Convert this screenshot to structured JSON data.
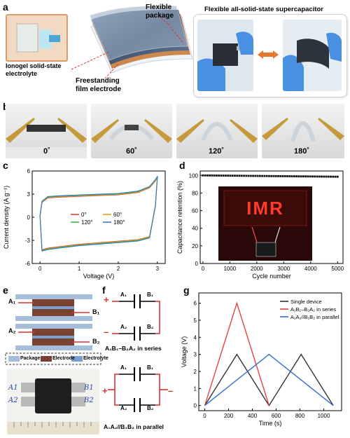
{
  "panel_a": {
    "label": "a",
    "ionogel_label": "Ionogel solid-state electrolyte",
    "ionogel_line1": "Ionogel solid-state",
    "ionogel_line2": "electrolyte",
    "flexible_package_line1": "Flexible",
    "flexible_package_line2": "package",
    "film_electrode_line1": "Freestanding",
    "film_electrode_line2": "film electrode",
    "supercap_title": "Flexible all-solid-state supercapacitor"
  },
  "panel_b": {
    "label": "b",
    "angles": [
      "0˚",
      "60˚",
      "120˚",
      "180˚"
    ]
  },
  "panel_c": {
    "label": "c",
    "chart_data": {
      "type": "line",
      "xlabel": "Voltage (V)",
      "ylabel": "Current density (A g⁻¹)",
      "xlim": [
        -0.2,
        3.2
      ],
      "ylim": [
        -6,
        6
      ],
      "xticks": [
        0,
        1,
        2,
        3
      ],
      "yticks": [
        -6,
        -3,
        0,
        3,
        6
      ],
      "legend": [
        "0°",
        "60°",
        "120°",
        "180°"
      ],
      "colors": [
        "#e8403a",
        "#d9a11c",
        "#3cb44b",
        "#3a78c9"
      ],
      "series_upper": {
        "x": [
          0,
          0.05,
          0.2,
          0.5,
          1.0,
          1.5,
          2.0,
          2.5,
          2.8,
          2.95,
          3.0
        ],
        "y": [
          0.2,
          2.0,
          2.6,
          2.7,
          2.8,
          2.9,
          3.0,
          3.3,
          3.9,
          4.8,
          5.2
        ]
      },
      "series_lower": {
        "x": [
          3.0,
          2.95,
          2.8,
          2.5,
          2.0,
          1.5,
          1.0,
          0.5,
          0.2,
          0.05,
          0.0
        ],
        "y": [
          5.2,
          1.5,
          -2.6,
          -3.0,
          -3.2,
          -3.4,
          -3.6,
          -3.9,
          -4.1,
          -4.3,
          0.2
        ]
      }
    }
  },
  "panel_d": {
    "label": "d",
    "sign_text": "IMR",
    "chart_data": {
      "type": "scatter",
      "xlabel": "Cycle number",
      "ylabel": "Capacitance retention (%)",
      "xlim": [
        -100,
        5200
      ],
      "ylim": [
        0,
        105
      ],
      "xticks": [
        0,
        1000,
        2000,
        3000,
        4000,
        5000
      ],
      "yticks": [
        0,
        20,
        40,
        60,
        80,
        100
      ],
      "series": [
        {
          "x_start": 0,
          "x_end": 5000,
          "y_start": 100,
          "y_end": 98.5,
          "points": 60
        }
      ]
    }
  },
  "panel_e": {
    "label": "e",
    "a1": "A₁",
    "b1": "B₁",
    "a2": "A₂",
    "b2": "B₂",
    "legend": [
      "Package",
      "Electrode",
      "Electrolyte"
    ],
    "photo_a1": "A1",
    "photo_a2": "A2",
    "photo_b1": "B1",
    "photo_b2": "B2"
  },
  "panel_f": {
    "label": "f",
    "a1": "A₁",
    "b1": "B₁",
    "a2": "A₂",
    "b2": "B₂",
    "plus": "+",
    "minus": "–",
    "series_caption": "A₁B₁–B₂A₂ in series",
    "parallel_caption": "A₁A₂//B₁B₂ in parallel"
  },
  "panel_g": {
    "label": "g",
    "chart_data": {
      "type": "line",
      "xlabel": "Time (s)",
      "ylabel": "Voltage (V)",
      "xlim": [
        -50,
        1150
      ],
      "ylim": [
        -0.3,
        6.6
      ],
      "xticks": [
        0,
        200,
        400,
        600,
        800,
        1000
      ],
      "yticks": [
        0,
        1,
        2,
        3,
        4,
        5,
        6
      ],
      "series": [
        {
          "name": "Single device",
          "color": "#333333",
          "x": [
            0,
            270,
            540,
            810,
            1080
          ],
          "y": [
            0,
            3,
            0,
            3,
            0
          ]
        },
        {
          "name": "A₁B₁–B₂A₂ in series",
          "color": "#e8403a",
          "x": [
            0,
            270,
            540
          ],
          "y": [
            0,
            6,
            0
          ]
        },
        {
          "name": "A₁A₂//B₁B₂ in parallel",
          "color": "#2f6fd6",
          "x": [
            0,
            540,
            1080
          ],
          "y": [
            0,
            3,
            0
          ]
        }
      ]
    }
  }
}
